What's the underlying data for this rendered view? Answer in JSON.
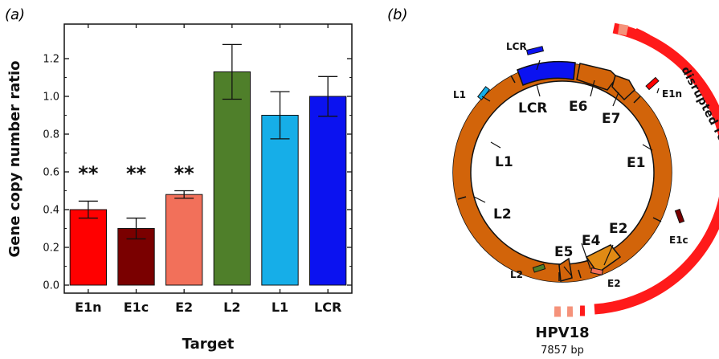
{
  "panel_a_label": "(a)",
  "panel_b_label": "(b)",
  "chart_data": {
    "type": "bar",
    "categories": [
      "E1n",
      "E1c",
      "E2",
      "L2",
      "L1",
      "LCR"
    ],
    "values": [
      0.4,
      0.3,
      0.48,
      1.13,
      0.9,
      1.0
    ],
    "errors": [
      0.045,
      0.055,
      0.02,
      0.145,
      0.125,
      0.105
    ],
    "significance": [
      "**",
      "**",
      "**",
      "",
      "",
      ""
    ],
    "colors": [
      "#ff0000",
      "#7a0000",
      "#f2705a",
      "#4f7f2a",
      "#16aee8",
      "#0b12f0"
    ],
    "xlabel": "Target",
    "ylabel": "Gene copy number ratio",
    "ylim": [
      0.0,
      1.35
    ],
    "yticks": [
      "0.0",
      "0.2",
      "0.4",
      "0.6",
      "0.8",
      "1.0",
      "1.2"
    ],
    "grid": false,
    "legend": "none"
  },
  "plasmid": {
    "name": "HPV18",
    "size": "7857 bp",
    "region_label": "disrupted region",
    "gene_labels": [
      "LCR",
      "E6",
      "E7",
      "E1",
      "E1",
      "E2",
      "E4",
      "E5",
      "L2",
      "L1"
    ],
    "probe_labels": {
      "lcr": "LCR",
      "l1": "L1",
      "e1n": "E1n",
      "e1c": "E1c",
      "e2": "E2",
      "l2": "L2"
    },
    "colors": {
      "ring": "#d2640a",
      "lcr": "#0b12f0",
      "e4": "#e08a14",
      "disrupted": "#ff1a1a",
      "disrupted_light": "#f5927a"
    }
  }
}
